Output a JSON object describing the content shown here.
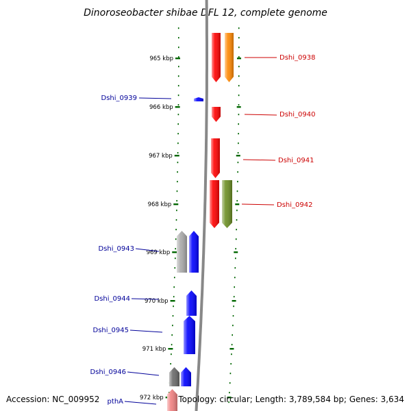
{
  "title": "Dinoroseobacter shibae DFL 12, complete genome",
  "accession": "Accession: NC_009952",
  "topology": "Topology: circular; Length: 3,789,584 bp; Genes: 3,634",
  "colors": {
    "backbone": "#888888",
    "tick": "#006600",
    "forward_label": "#cc0000",
    "reverse_label": "#000099"
  },
  "ticks": [
    "965 kbp",
    "966 kbp",
    "967 kbp",
    "968 kbp",
    "969 kbp",
    "970 kbp",
    "971 kbp",
    "972 kbp"
  ],
  "genes": [
    {
      "label": "Dshi_0938",
      "strand": "forward",
      "color": "#ff0000"
    },
    {
      "label": "",
      "strand": "forward",
      "color": "#ff8800"
    },
    {
      "label": "Dshi_0939",
      "strand": "reverse",
      "color": "#0000ff"
    },
    {
      "label": "Dshi_0940",
      "strand": "forward",
      "color": "#ff0000"
    },
    {
      "label": "Dshi_0941",
      "strand": "forward",
      "color": "#ff0000"
    },
    {
      "label": "Dshi_0942",
      "strand": "forward",
      "color": "#ff0000"
    },
    {
      "label": "",
      "strand": "forward",
      "color": "#6b8e23"
    },
    {
      "label": "Dshi_0943",
      "strand": "reverse",
      "color": "#0000ff"
    },
    {
      "label": "",
      "strand": "reverse",
      "color": "#a9a9a9"
    },
    {
      "label": "Dshi_0944",
      "strand": "reverse",
      "color": "#0000ff"
    },
    {
      "label": "Dshi_0945",
      "strand": "reverse",
      "color": "#0000ff"
    },
    {
      "label": "Dshi_0946",
      "strand": "reverse",
      "color": "#0000ff"
    },
    {
      "label": "",
      "strand": "reverse",
      "color": "#696969"
    },
    {
      "label": "pthA",
      "strand": "reverse",
      "color": "#f08080"
    }
  ]
}
